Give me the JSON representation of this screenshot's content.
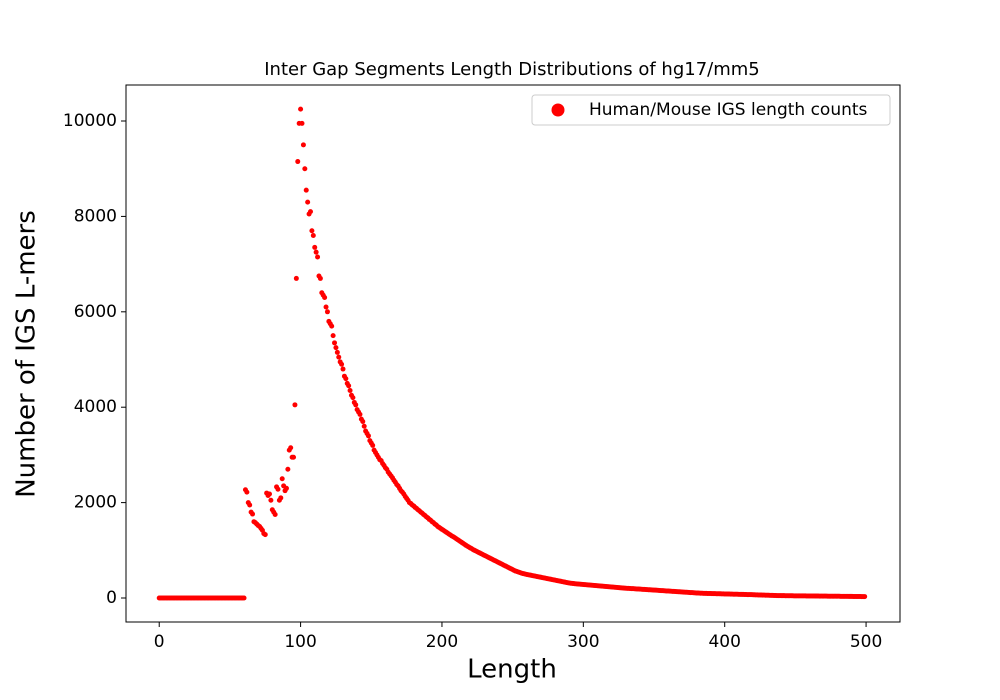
{
  "chart_data": {
    "type": "scatter",
    "title": "Inter Gap Segments Length Distributions of hg17/mm5",
    "xlabel": "Length",
    "ylabel": "Number of IGS L-mers",
    "x": [
      0,
      1,
      2,
      3,
      4,
      5,
      6,
      7,
      8,
      9,
      10,
      11,
      12,
      13,
      14,
      15,
      16,
      17,
      18,
      19,
      20,
      21,
      22,
      23,
      24,
      25,
      26,
      27,
      28,
      29,
      30,
      31,
      32,
      33,
      34,
      35,
      36,
      37,
      38,
      39,
      40,
      41,
      42,
      43,
      44,
      45,
      46,
      47,
      48,
      49,
      50,
      51,
      52,
      53,
      54,
      55,
      56,
      57,
      58,
      59,
      60,
      61,
      62,
      63,
      64,
      65,
      66,
      67,
      68,
      69,
      70,
      71,
      72,
      73,
      74,
      75,
      76,
      77,
      78,
      79,
      80,
      81,
      82,
      83,
      84,
      85,
      86,
      87,
      88,
      89,
      90,
      91,
      92,
      93,
      94,
      95,
      96,
      97,
      98,
      99,
      100,
      101,
      102,
      103,
      104,
      105,
      106,
      107,
      108,
      109,
      110,
      111,
      112,
      113,
      114,
      115,
      116,
      117,
      118,
      119,
      120,
      121,
      122,
      123,
      124,
      125,
      126,
      127,
      128,
      129,
      130,
      131,
      132,
      133,
      134,
      135,
      136,
      137,
      138,
      139,
      140,
      141,
      142,
      143,
      144,
      145,
      146,
      147,
      148,
      149,
      150,
      151,
      152,
      153,
      154,
      155,
      156,
      157,
      158,
      159,
      160,
      161,
      162,
      163,
      164,
      165,
      166,
      167,
      168,
      169,
      170,
      171,
      172,
      173,
      174,
      175,
      176,
      177,
      178,
      179,
      180,
      181,
      182,
      183,
      184,
      185,
      186,
      187,
      188,
      189,
      190,
      191,
      192,
      193,
      194,
      195,
      196,
      197,
      198,
      199,
      200,
      201,
      202,
      203,
      204,
      205,
      206,
      207,
      208,
      209,
      210,
      211,
      212,
      213,
      214,
      215,
      216,
      217,
      218,
      219,
      220,
      221,
      222,
      223,
      224,
      225,
      226,
      227,
      228,
      229,
      230,
      231,
      232,
      233,
      234,
      235,
      236,
      237,
      238,
      239,
      240,
      241,
      242,
      243,
      244,
      245,
      246,
      247,
      248,
      249,
      250,
      251,
      252,
      253,
      254,
      255,
      256,
      257,
      258,
      259,
      260,
      261,
      262,
      263,
      264,
      265,
      266,
      267,
      268,
      269,
      270,
      271,
      272,
      273,
      274,
      275,
      276,
      277,
      278,
      279,
      280,
      281,
      282,
      283,
      284,
      285,
      286,
      287,
      288,
      289,
      290,
      291,
      292,
      293,
      294,
      295,
      296,
      297,
      298,
      299,
      300,
      301,
      302,
      303,
      304,
      305,
      306,
      307,
      308,
      309,
      310,
      311,
      312,
      313,
      314,
      315,
      316,
      317,
      318,
      319,
      320,
      321,
      322,
      323,
      324,
      325,
      326,
      327,
      328,
      329,
      330,
      331,
      332,
      333,
      334,
      335,
      336,
      337,
      338,
      339,
      340,
      341,
      342,
      343,
      344,
      345,
      346,
      347,
      348,
      349,
      350,
      351,
      352,
      353,
      354,
      355,
      356,
      357,
      358,
      359,
      360,
      361,
      362,
      363,
      364,
      365,
      366,
      367,
      368,
      369,
      370,
      371,
      372,
      373,
      374,
      375,
      376,
      377,
      378,
      379,
      380,
      381,
      382,
      383,
      384,
      385,
      386,
      387,
      388,
      389,
      390,
      391,
      392,
      393,
      394,
      395,
      396,
      397,
      398,
      399,
      400,
      401,
      402,
      403,
      404,
      405,
      406,
      407,
      408,
      409,
      410,
      411,
      412,
      413,
      414,
      415,
      416,
      417,
      418,
      419,
      420,
      421,
      422,
      423,
      424,
      425,
      426,
      427,
      428,
      429,
      430,
      431,
      432,
      433,
      434,
      435,
      436,
      437,
      438,
      439,
      440,
      441,
      442,
      443,
      444,
      445,
      446,
      447,
      448,
      449,
      450,
      451,
      452,
      453,
      454,
      455,
      456,
      457,
      458,
      459,
      460,
      461,
      462,
      463,
      464,
      465,
      466,
      467,
      468,
      469,
      470,
      471,
      472,
      473,
      474,
      475,
      476,
      477,
      478,
      479,
      480,
      481,
      482,
      483,
      484,
      485,
      486,
      487,
      488,
      489,
      490,
      491,
      492,
      493,
      494,
      495,
      496,
      497,
      498,
      499
    ],
    "series": [
      {
        "name": "Human/Mouse IGS length counts",
        "color": "#ff0000",
        "values": [
          0,
          0,
          0,
          0,
          0,
          0,
          0,
          0,
          0,
          0,
          0,
          0,
          0,
          0,
          0,
          0,
          0,
          0,
          0,
          0,
          0,
          0,
          0,
          0,
          0,
          0,
          0,
          0,
          0,
          0,
          0,
          0,
          0,
          0,
          0,
          0,
          0,
          0,
          0,
          0,
          0,
          0,
          0,
          0,
          0,
          0,
          0,
          0,
          0,
          0,
          0,
          0,
          0,
          0,
          0,
          0,
          0,
          0,
          0,
          0,
          0,
          2270,
          2220,
          2000,
          1950,
          1800,
          1760,
          1600,
          1580,
          1550,
          1520,
          1500,
          1460,
          1420,
          1350,
          1330,
          2200,
          2150,
          2180,
          2050,
          1850,
          1800,
          1750,
          2330,
          2280,
          2050,
          2100,
          2500,
          2350,
          2250,
          2300,
          2700,
          3100,
          3150,
          2950,
          2950,
          4050,
          6700,
          9150,
          9950,
          10250,
          9950,
          9500,
          9000,
          8550,
          8300,
          8050,
          8100,
          7700,
          7600,
          7350,
          7250,
          7150,
          6750,
          6700,
          6400,
          6350,
          6300,
          6100,
          6000,
          5800,
          5750,
          5700,
          5500,
          5350,
          5250,
          5150,
          5050,
          4950,
          4900,
          4800,
          4650,
          4600,
          4500,
          4450,
          4350,
          4250,
          4200,
          4100,
          4050,
          3950,
          3900,
          3850,
          3750,
          3700,
          3600,
          3500,
          3450,
          3400,
          3300,
          3250,
          3200,
          3100,
          3050,
          3000,
          2950,
          2900,
          2880,
          2820,
          2780,
          2730,
          2700,
          2640,
          2600,
          2560,
          2520,
          2470,
          2430,
          2380,
          2350,
          2300,
          2250,
          2220,
          2180,
          2130,
          2090,
          2050,
          2000,
          1980,
          1950,
          1930,
          1900,
          1880,
          1850,
          1830,
          1800,
          1780,
          1750,
          1730,
          1700,
          1680,
          1650,
          1630,
          1600,
          1580,
          1550,
          1530,
          1500,
          1480,
          1460,
          1440,
          1420,
          1400,
          1380,
          1360,
          1340,
          1320,
          1300,
          1285,
          1265,
          1245,
          1225,
          1205,
          1185,
          1165,
          1145,
          1125,
          1105,
          1085,
          1070,
          1050,
          1035,
          1015,
          1000,
          985,
          970,
          955,
          940,
          925,
          910,
          895,
          880,
          865,
          850,
          835,
          820,
          805,
          790,
          775,
          760,
          745,
          730,
          715,
          700,
          685,
          670,
          655,
          640,
          625,
          610,
          595,
          580,
          565,
          555,
          545,
          535,
          525,
          515,
          508,
          500,
          494,
          488,
          482,
          476,
          470,
          464,
          458,
          452,
          446,
          440,
          434,
          428,
          422,
          416,
          410,
          404,
          398,
          392,
          386,
          380,
          374,
          368,
          362,
          356,
          350,
          344,
          338,
          332,
          326,
          320,
          315,
          310,
          306,
          303,
          300,
          297,
          294,
          292,
          289,
          286,
          284,
          281,
          278,
          276,
          273,
          270,
          268,
          265,
          262,
          260,
          257,
          254,
          252,
          249,
          246,
          244,
          241,
          238,
          236,
          233,
          230,
          228,
          225,
          222,
          220,
          217,
          214,
          212,
          209,
          206,
          204,
          202,
          201,
          200,
          198,
          196,
          194,
          192,
          190,
          188,
          186,
          184,
          182,
          180,
          178,
          176,
          174,
          172,
          170,
          168,
          166,
          164,
          162,
          160,
          158,
          156,
          154,
          152,
          150,
          148,
          146,
          144,
          142,
          140,
          138,
          136,
          134,
          132,
          130,
          128,
          126,
          124,
          122,
          120,
          118,
          116,
          114,
          112,
          110,
          108,
          106,
          104,
          102,
          100,
          99,
          98,
          97,
          96,
          95,
          95,
          94,
          93,
          92,
          91,
          90,
          90,
          89,
          88,
          87,
          86,
          85,
          85,
          84,
          83,
          82,
          81,
          80,
          80,
          79,
          78,
          77,
          76,
          75,
          75,
          74,
          73,
          72,
          71,
          70,
          70,
          68,
          67,
          66,
          65,
          64,
          63,
          62,
          61,
          60,
          59,
          58,
          57,
          56,
          55,
          54,
          53,
          52,
          51,
          50,
          50,
          49,
          49,
          49,
          48,
          48,
          48,
          47,
          47,
          47,
          46,
          46,
          46,
          45,
          45,
          45,
          44,
          44,
          44,
          43,
          43,
          43,
          42,
          42,
          42,
          41,
          41,
          41,
          40,
          40,
          40,
          39,
          39,
          39,
          38,
          38,
          38,
          37,
          37,
          37,
          36,
          36,
          36,
          35,
          35,
          35,
          34,
          34,
          34,
          33,
          33,
          33,
          32,
          32,
          32,
          31,
          31,
          31,
          30,
          30,
          30
        ]
      }
    ],
    "xlim": [
      -23.5,
      524
    ],
    "ylim": [
      -503,
      10755
    ],
    "xticks": [
      0,
      100,
      200,
      300,
      400,
      500
    ],
    "yticks": [
      0,
      2000,
      4000,
      6000,
      8000,
      10000
    ],
    "legend": "upper right",
    "grid": false
  }
}
